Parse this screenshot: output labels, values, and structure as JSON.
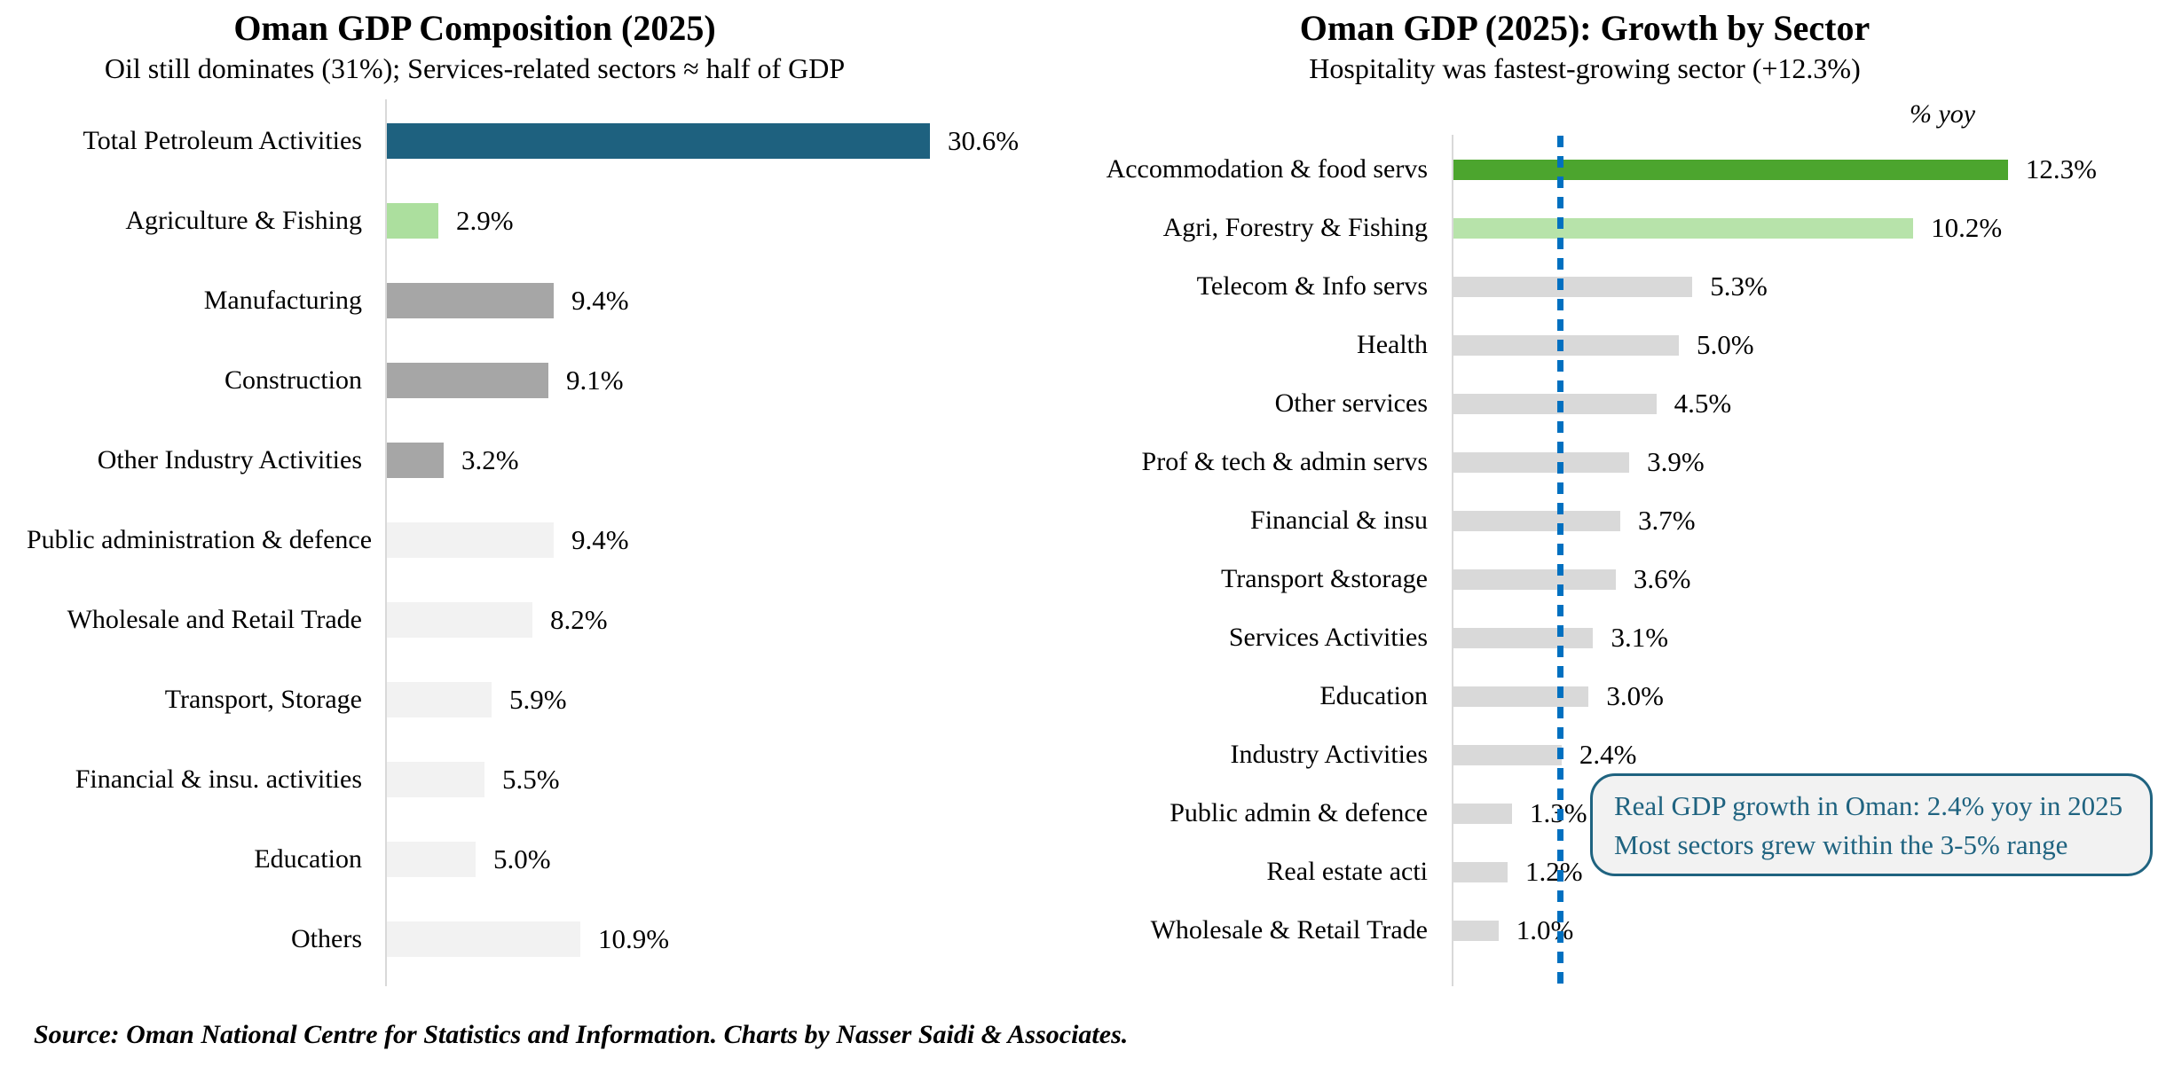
{
  "page": {
    "background": "#FFFFFF"
  },
  "footer": {
    "text": "Source: Oman National Centre for Statistics and Information. Charts by Nasser Saidi & Associates."
  },
  "chart_data": [
    {
      "type": "bar",
      "orientation": "horizontal",
      "title": "Oman GDP Composition (2025)",
      "subtitle": "Oil still dominates (31%); Services-related sectors ≈ half of GDP",
      "xlabel": "",
      "ylabel": "",
      "xlim": [
        0,
        37
      ],
      "grid": false,
      "legend": "none",
      "value_suffix": "%",
      "categories": [
        "Total Petroleum Activities",
        "Agriculture & Fishing",
        "Manufacturing",
        "Construction",
        "Other Industry Activities",
        "Public administration & defence",
        "Wholesale and Retail Trade",
        "Transport, Storage",
        "Financial & insu. activities",
        "Education",
        "Others"
      ],
      "values": [
        30.6,
        2.9,
        9.4,
        9.1,
        3.2,
        9.4,
        8.2,
        5.9,
        5.5,
        5.0,
        10.9
      ],
      "value_labels": [
        "30.6%",
        "2.9%",
        "9.4%",
        "9.1%",
        "3.2%",
        "9.4%",
        "8.2%",
        "5.9%",
        "5.5%",
        "5.0%",
        "10.9%"
      ],
      "bar_colors": [
        "#1E617F",
        "#ACDF9E",
        "#A6A6A6",
        "#A6A6A6",
        "#A6A6A6",
        "#F2F2F2",
        "#F2F2F2",
        "#F2F2F2",
        "#F2F2F2",
        "#F2F2F2",
        "#F2F2F2"
      ],
      "axis_color": "#D9D9D9"
    },
    {
      "type": "bar",
      "orientation": "horizontal",
      "title": "Oman GDP (2025): Growth by Sector",
      "subtitle": "Hospitality was fastest-growing sector (+12.3%)",
      "axis_unit_label": "% yoy",
      "xlabel": "",
      "ylabel": "",
      "xlim": [
        0,
        15.5
      ],
      "grid": false,
      "legend": "none",
      "value_suffix": "%",
      "categories": [
        "Accommodation & food servs",
        "Agri, Forestry & Fishing",
        "Telecom & Info servs",
        "Health",
        "Other services",
        "Prof & tech & admin servs",
        "Financial & insu",
        "Transport &storage",
        "Services Activities",
        "Education",
        "Industry Activities",
        "Public admin & defence",
        "Real estate acti",
        "Wholesale & Retail Trade"
      ],
      "values": [
        12.3,
        10.2,
        5.3,
        5.0,
        4.5,
        3.9,
        3.7,
        3.6,
        3.1,
        3.0,
        2.4,
        1.3,
        1.2,
        1.0
      ],
      "value_labels": [
        "12.3%",
        "10.2%",
        "5.3%",
        "5.0%",
        "4.5%",
        "3.9%",
        "3.7%",
        "3.6%",
        "3.1%",
        "3.0%",
        "2.4%",
        "1.3%",
        "1.2%",
        "1.0%"
      ],
      "bar_colors": [
        "#4CA52E",
        "#B7E3AA",
        "#D9D9D9",
        "#D9D9D9",
        "#D9D9D9",
        "#D9D9D9",
        "#D9D9D9",
        "#D9D9D9",
        "#D9D9D9",
        "#D9D9D9",
        "#D9D9D9",
        "#D9D9D9",
        "#D9D9D9",
        "#D9D9D9"
      ],
      "axis_color": "#D9D9D9",
      "reference_line": {
        "value": 2.4,
        "style": "dotted",
        "color": "#0070C0"
      },
      "callout": {
        "line1": "Real GDP growth in Oman: 2.4% yoy in 2025",
        "line2": "Most sectors grew within the 3-5% range",
        "text_color": "#1F6380",
        "border_color": "#1F6380",
        "fill_color": "#F2F2F2"
      }
    }
  ]
}
